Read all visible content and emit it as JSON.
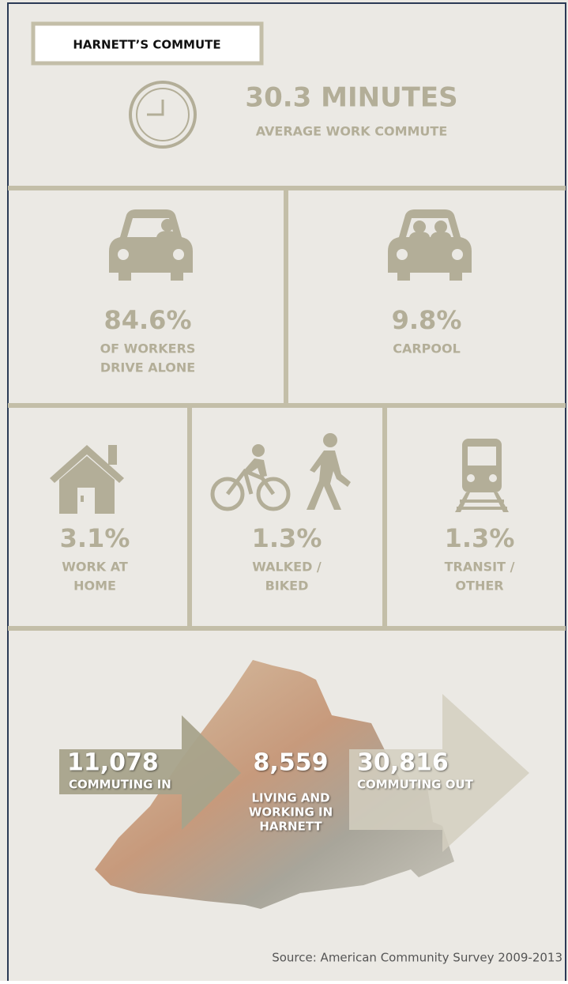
{
  "header": {
    "title": "HARNETT’S COMMUTE"
  },
  "average": {
    "value": "30.3 MINUTES",
    "label": "AVERAGE WORK COMMUTE"
  },
  "modes": [
    {
      "value": "84.6%",
      "label_lines": [
        "OF WORKERS",
        "DRIVE ALONE"
      ]
    },
    {
      "value": "9.8%",
      "label_lines": [
        "CARPOOL"
      ]
    },
    {
      "value": "3.1%",
      "label_lines": [
        "WORK AT",
        "HOME"
      ]
    },
    {
      "value": "1.3%",
      "label_lines": [
        "WALKED /",
        "BIKED"
      ]
    },
    {
      "value": "1.3%",
      "label_lines": [
        "TRANSIT /",
        "OTHER"
      ]
    }
  ],
  "flows": {
    "in": {
      "value": "11,078",
      "label_lines": [
        "COMMUTING IN"
      ]
    },
    "within": {
      "value": "8,559",
      "label_lines": [
        "LIVING AND",
        "WORKING IN",
        "HARNETT"
      ]
    },
    "out": {
      "value": "30,816",
      "label_lines": [
        "COMMUTING OUT"
      ]
    }
  },
  "source": "Source: American Community Survey 2009-2013"
}
